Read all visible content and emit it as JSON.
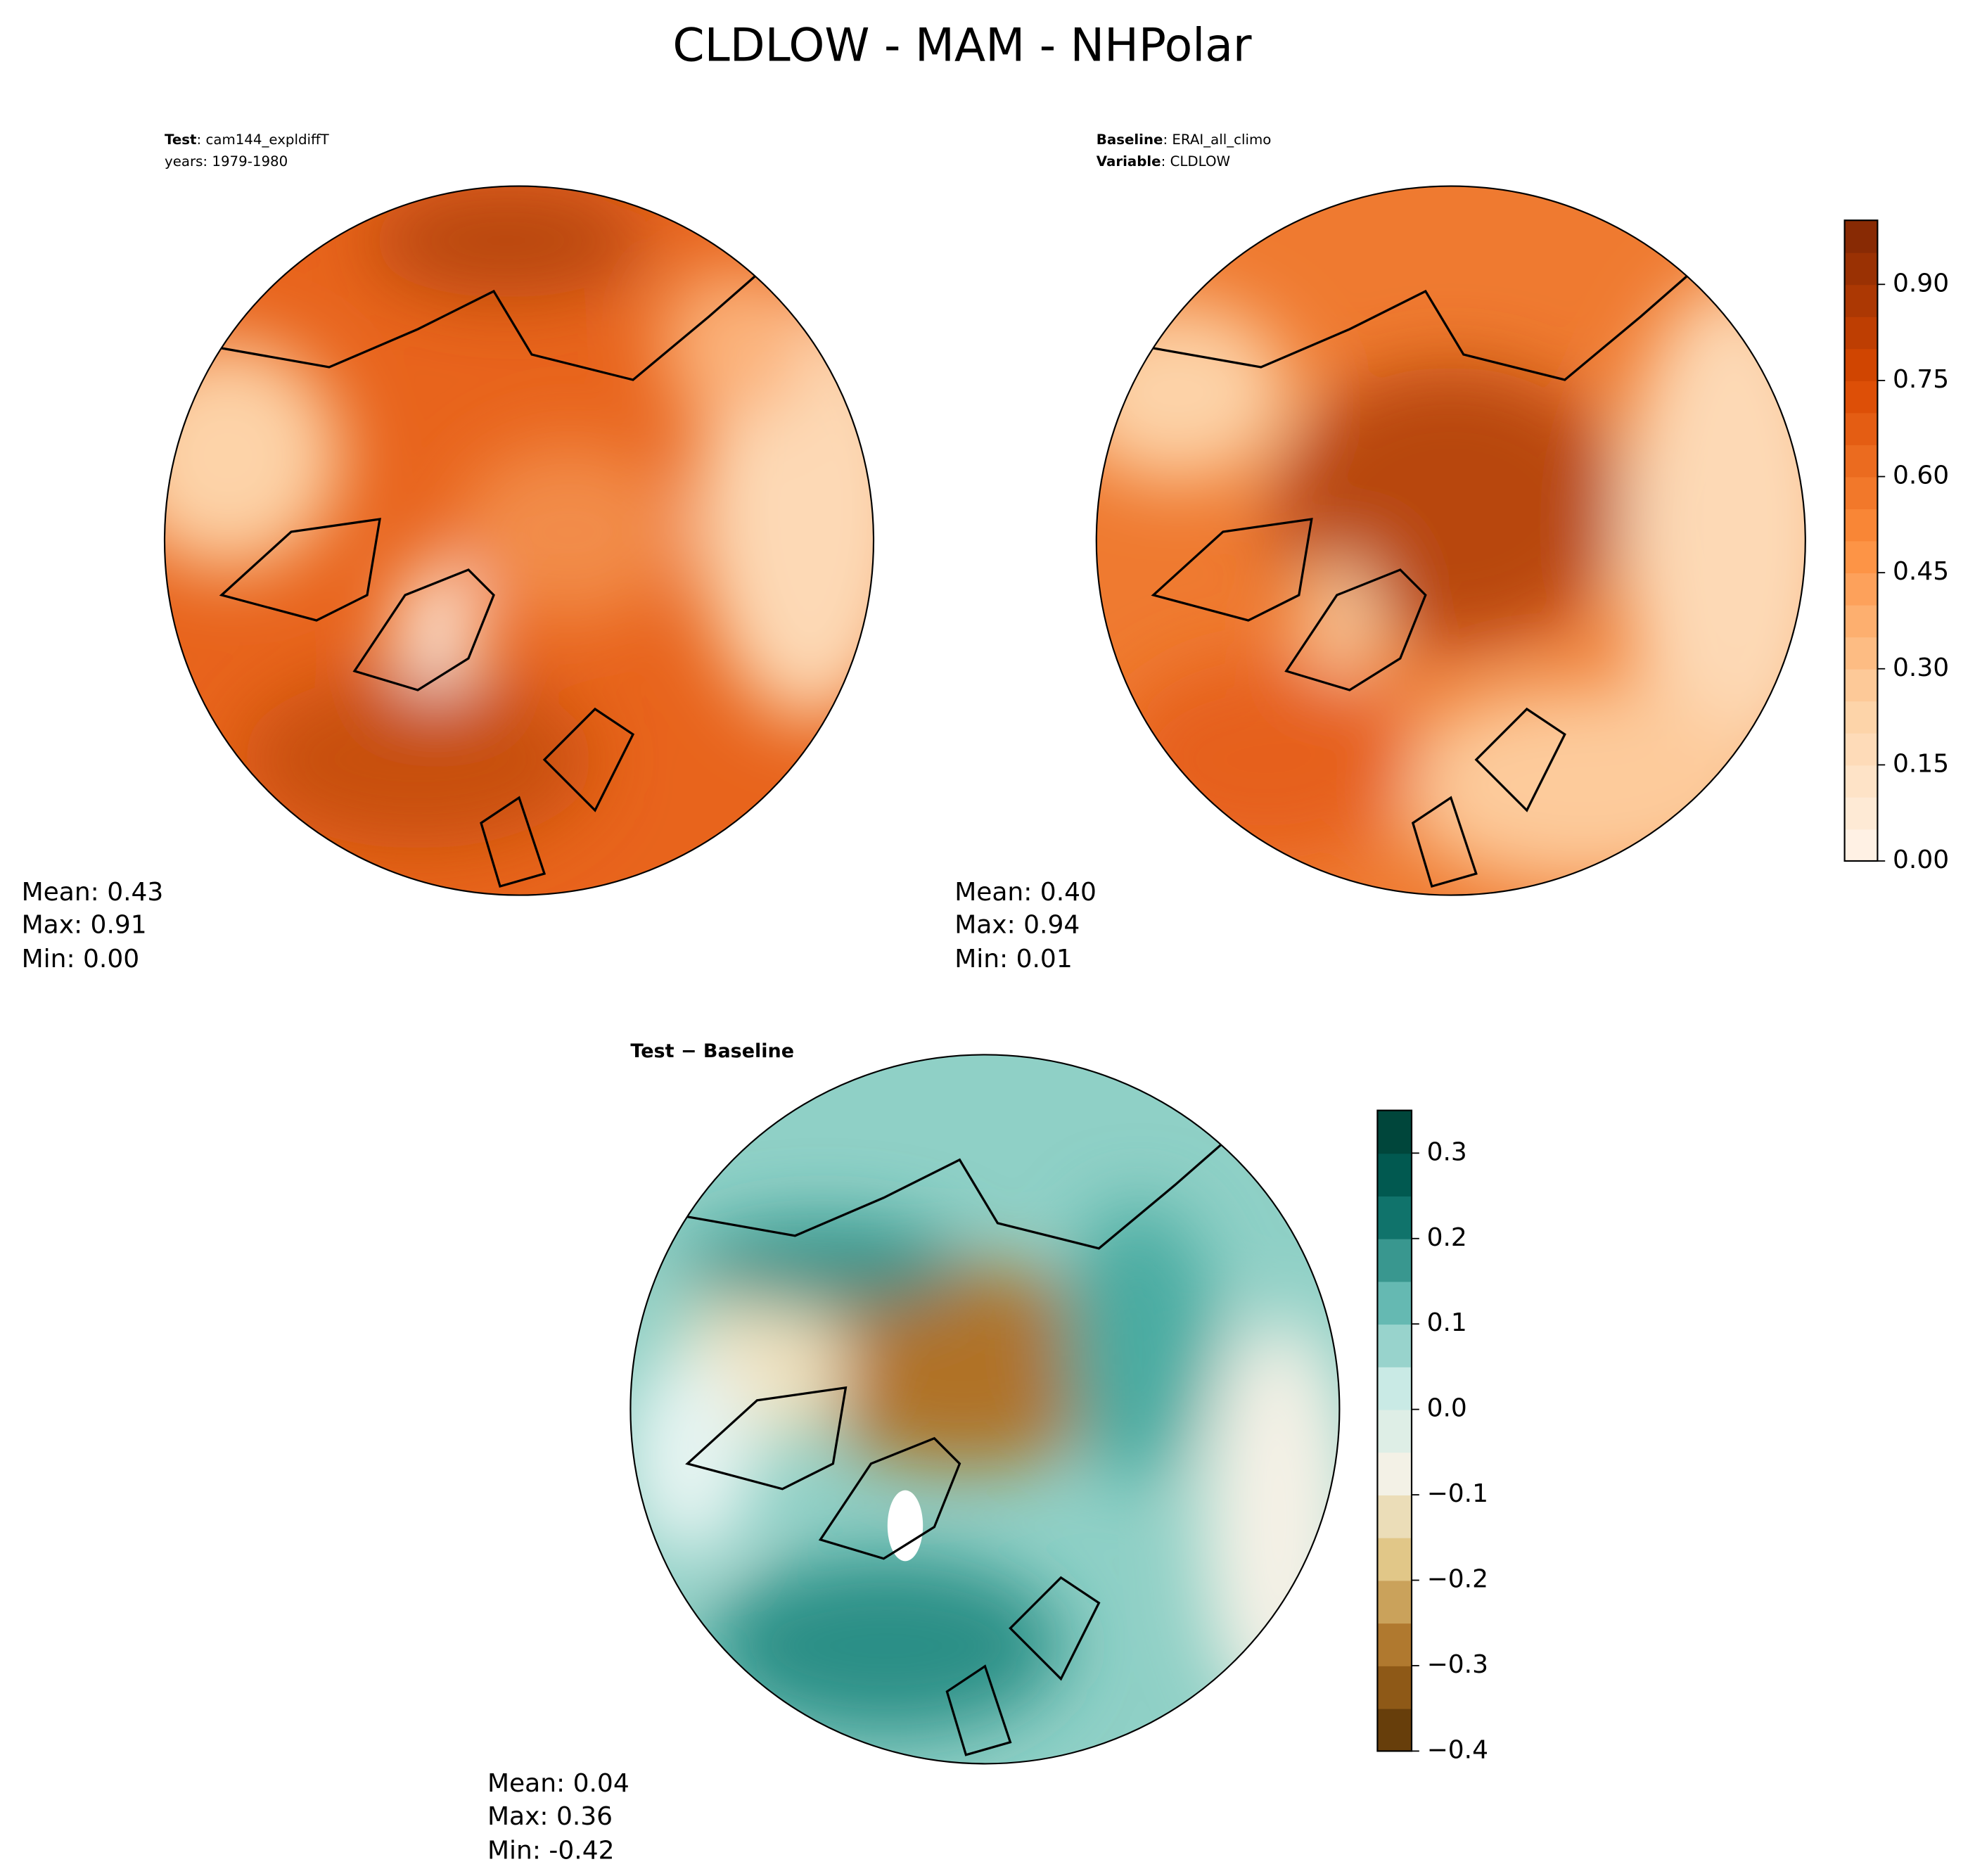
{
  "title": "CLDLOW - MAM - NHPolar",
  "panels": [
    {
      "line1_key": "Test",
      "line1_value": ": cam144_expldiffT",
      "line2": "years: 1979-1980",
      "stats": [
        "Mean:  0.43",
        "Max:  0.91",
        "Min:  0.00"
      ]
    },
    {
      "line1_key": "Baseline",
      "line1_value": ": ERAI_all_climo",
      "line2_key": "Variable",
      "line2_value": ": CLDLOW",
      "stats": [
        "Mean:  0.40",
        "Max:  0.94",
        "Min:  0.01"
      ]
    },
    {
      "line1_key": "Test − Baseline",
      "stats": [
        "Mean:  0.04",
        "Max:  0.36",
        "Min: -0.42"
      ]
    }
  ],
  "colorbars": [
    {
      "lim": [
        0,
        1
      ],
      "colormap": [
        "#fff5eb",
        "#fdd0a2",
        "#fd8d3c",
        "#d94801",
        "#7f2704"
      ],
      "ticks": [
        {
          "value": 0,
          "label": "0.00"
        },
        {
          "value": 0.15,
          "label": "0.15"
        },
        {
          "value": 0.3,
          "label": "0.30"
        },
        {
          "value": 0.45,
          "label": "0.45"
        },
        {
          "value": 0.6,
          "label": "0.60"
        },
        {
          "value": 0.75,
          "label": "0.75"
        },
        {
          "value": 0.9,
          "label": "0.90"
        }
      ]
    },
    {
      "lim": [
        -0.4,
        0.35
      ],
      "colormap": [
        "#543005",
        "#a76a1f",
        "#dfc27d",
        "#f5f1e6",
        "#c7eae5",
        "#5ab4ac",
        "#01665e",
        "#003c30"
      ],
      "ticks": [
        {
          "value": -0.4,
          "label": "−0.4"
        },
        {
          "value": -0.3,
          "label": "−0.3"
        },
        {
          "value": -0.2,
          "label": "−0.2"
        },
        {
          "value": -0.1,
          "label": "−0.1"
        },
        {
          "value": 0,
          "label": "0.0"
        },
        0.1,
        0.2,
        0.3
      ]
    }
  ]
}
